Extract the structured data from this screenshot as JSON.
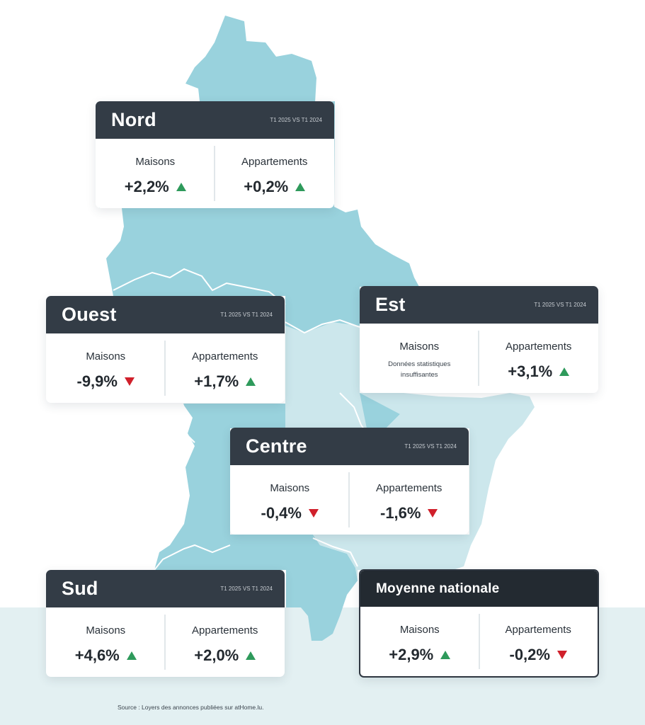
{
  "colors": {
    "map_main": "#99d2dd",
    "map_light": "#cce7ec",
    "card_header": "#333c46",
    "up": "#2e9a5b",
    "down": "#d0202b",
    "band": "#e3f0f2"
  },
  "regions": {
    "nord": {
      "title": "Nord",
      "period": "T1 2025 VS T1 2024",
      "maisons": {
        "label": "Maisons",
        "value": "+2,2%",
        "trend": "up"
      },
      "appartements": {
        "label": "Appartements",
        "value": "+0,2%",
        "trend": "up"
      }
    },
    "ouest": {
      "title": "Ouest",
      "period": "T1 2025 VS T1 2024",
      "maisons": {
        "label": "Maisons",
        "value": "-9,9%",
        "trend": "down"
      },
      "appartements": {
        "label": "Appartements",
        "value": "+1,7%",
        "trend": "up"
      }
    },
    "est": {
      "title": "Est",
      "period": "T1 2025 VS T1 2024",
      "maisons": {
        "label": "Maisons",
        "note_line1": "Données statistiques",
        "note_line2": "insuffisantes"
      },
      "appartements": {
        "label": "Appartements",
        "value": "+3,1%",
        "trend": "up"
      }
    },
    "centre": {
      "title": "Centre",
      "period": "T1 2025 VS T1 2024",
      "maisons": {
        "label": "Maisons",
        "value": "-0,4%",
        "trend": "down"
      },
      "appartements": {
        "label": "Appartements",
        "value": "-1,6%",
        "trend": "down"
      }
    },
    "sud": {
      "title": "Sud",
      "period": "T1 2025 VS T1 2024",
      "maisons": {
        "label": "Maisons",
        "value": "+4,6%",
        "trend": "up"
      },
      "appartements": {
        "label": "Appartements",
        "value": "+2,0%",
        "trend": "up"
      }
    },
    "national": {
      "title": "Moyenne nationale",
      "maisons": {
        "label": "Maisons",
        "value": "+2,9%",
        "trend": "up"
      },
      "appartements": {
        "label": "Appartements",
        "value": "-0,2%",
        "trend": "down"
      }
    }
  },
  "source": "Source : Loyers des annonces publiées sur atHome.lu."
}
